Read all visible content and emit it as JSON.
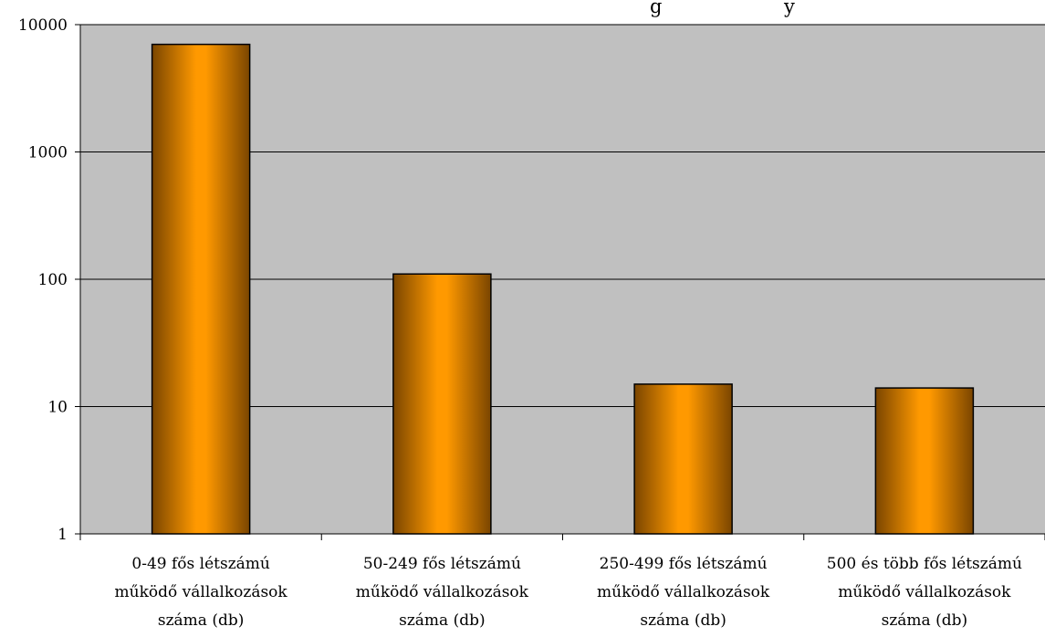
{
  "chart_data": {
    "type": "bar",
    "title": "",
    "title_fragment_visible": "g                    y",
    "scale": "log",
    "ylim": [
      1,
      10000
    ],
    "y_ticks": [
      {
        "value": 1,
        "label": "1"
      },
      {
        "value": 10,
        "label": "10"
      },
      {
        "value": 100,
        "label": "100"
      },
      {
        "value": 1000,
        "label": "1000"
      },
      {
        "value": 10000,
        "label": "10000"
      }
    ],
    "grid": true,
    "legend": "none",
    "categories": [
      [
        "0-49 fős létszámú",
        "működő vállalkozások",
        "száma (db)"
      ],
      [
        "50-249 fős létszámú",
        "működő vállalkozások",
        "száma (db)"
      ],
      [
        "250-499 fős létszámú",
        "működő vállalkozások",
        "száma (db)"
      ],
      [
        "500 és több fős létszámú",
        "működő vállalkozások",
        "száma (db)"
      ]
    ],
    "values": [
      7000,
      110,
      15,
      14
    ],
    "colors": {
      "plot_bg": "#c0c0c0",
      "bar_light": "#ff9900",
      "bar_dark": "#7a4500",
      "bar_stroke": "#000000",
      "grid": "#000000"
    }
  }
}
